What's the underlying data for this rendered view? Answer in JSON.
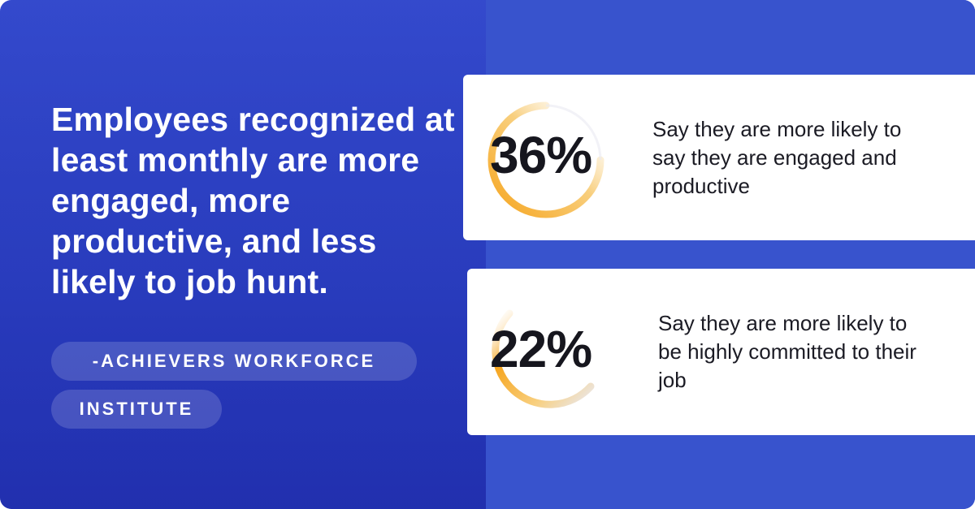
{
  "headline": "Employees recognized at least monthly are more engaged, more productive, and less likely to job hunt.",
  "source_line_1": "-ACHIEVERS WORKFORCE",
  "source_line_2": "INSTITUTE",
  "stats": [
    {
      "value": "36%",
      "description": "Say they are more likely to say they are engaged and productive"
    },
    {
      "value": "22%",
      "description": "Say they are more likely to be highly committed to their job"
    }
  ],
  "colors": {
    "background": "#3853cd",
    "accent": "#f5a623",
    "text_dark": "#16161e"
  }
}
